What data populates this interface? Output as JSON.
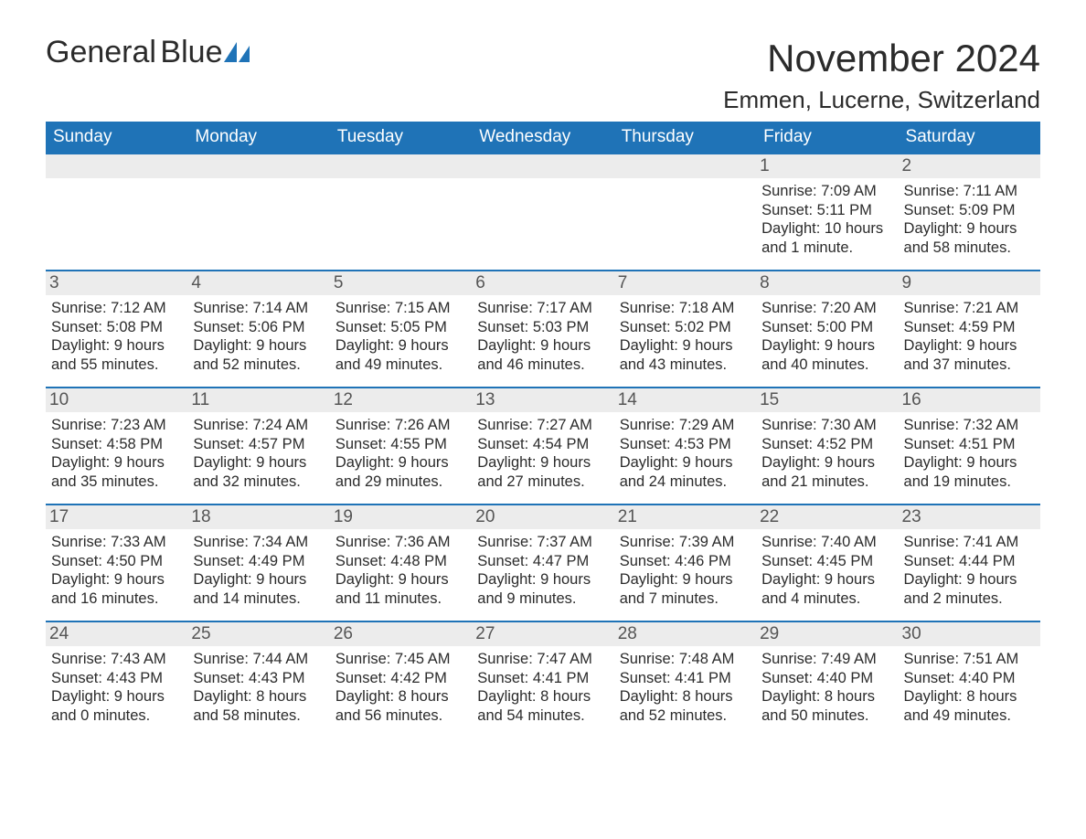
{
  "logo": {
    "word1": "General",
    "word2": "Blue",
    "sail_color": "#1f73b7",
    "text_color_dark": "#2b2b2b"
  },
  "title": "November 2024",
  "location": "Emmen, Lucerne, Switzerland",
  "colors": {
    "header_bg": "#1f73b7",
    "header_text": "#ffffff",
    "row_border": "#1f73b7",
    "daynum_bg": "#ececec",
    "daynum_text": "#555555",
    "body_text": "#2b2b2b",
    "page_bg": "#ffffff"
  },
  "weekdays": [
    "Sunday",
    "Monday",
    "Tuesday",
    "Wednesday",
    "Thursday",
    "Friday",
    "Saturday"
  ],
  "labels": {
    "sunrise": "Sunrise:",
    "sunset": "Sunset:",
    "daylight": "Daylight:"
  },
  "weeks": [
    [
      null,
      null,
      null,
      null,
      null,
      {
        "n": "1",
        "sunrise": "7:09 AM",
        "sunset": "5:11 PM",
        "daylight": "10 hours and 1 minute."
      },
      {
        "n": "2",
        "sunrise": "7:11 AM",
        "sunset": "5:09 PM",
        "daylight": "9 hours and 58 minutes."
      }
    ],
    [
      {
        "n": "3",
        "sunrise": "7:12 AM",
        "sunset": "5:08 PM",
        "daylight": "9 hours and 55 minutes."
      },
      {
        "n": "4",
        "sunrise": "7:14 AM",
        "sunset": "5:06 PM",
        "daylight": "9 hours and 52 minutes."
      },
      {
        "n": "5",
        "sunrise": "7:15 AM",
        "sunset": "5:05 PM",
        "daylight": "9 hours and 49 minutes."
      },
      {
        "n": "6",
        "sunrise": "7:17 AM",
        "sunset": "5:03 PM",
        "daylight": "9 hours and 46 minutes."
      },
      {
        "n": "7",
        "sunrise": "7:18 AM",
        "sunset": "5:02 PM",
        "daylight": "9 hours and 43 minutes."
      },
      {
        "n": "8",
        "sunrise": "7:20 AM",
        "sunset": "5:00 PM",
        "daylight": "9 hours and 40 minutes."
      },
      {
        "n": "9",
        "sunrise": "7:21 AM",
        "sunset": "4:59 PM",
        "daylight": "9 hours and 37 minutes."
      }
    ],
    [
      {
        "n": "10",
        "sunrise": "7:23 AM",
        "sunset": "4:58 PM",
        "daylight": "9 hours and 35 minutes."
      },
      {
        "n": "11",
        "sunrise": "7:24 AM",
        "sunset": "4:57 PM",
        "daylight": "9 hours and 32 minutes."
      },
      {
        "n": "12",
        "sunrise": "7:26 AM",
        "sunset": "4:55 PM",
        "daylight": "9 hours and 29 minutes."
      },
      {
        "n": "13",
        "sunrise": "7:27 AM",
        "sunset": "4:54 PM",
        "daylight": "9 hours and 27 minutes."
      },
      {
        "n": "14",
        "sunrise": "7:29 AM",
        "sunset": "4:53 PM",
        "daylight": "9 hours and 24 minutes."
      },
      {
        "n": "15",
        "sunrise": "7:30 AM",
        "sunset": "4:52 PM",
        "daylight": "9 hours and 21 minutes."
      },
      {
        "n": "16",
        "sunrise": "7:32 AM",
        "sunset": "4:51 PM",
        "daylight": "9 hours and 19 minutes."
      }
    ],
    [
      {
        "n": "17",
        "sunrise": "7:33 AM",
        "sunset": "4:50 PM",
        "daylight": "9 hours and 16 minutes."
      },
      {
        "n": "18",
        "sunrise": "7:34 AM",
        "sunset": "4:49 PM",
        "daylight": "9 hours and 14 minutes."
      },
      {
        "n": "19",
        "sunrise": "7:36 AM",
        "sunset": "4:48 PM",
        "daylight": "9 hours and 11 minutes."
      },
      {
        "n": "20",
        "sunrise": "7:37 AM",
        "sunset": "4:47 PM",
        "daylight": "9 hours and 9 minutes."
      },
      {
        "n": "21",
        "sunrise": "7:39 AM",
        "sunset": "4:46 PM",
        "daylight": "9 hours and 7 minutes."
      },
      {
        "n": "22",
        "sunrise": "7:40 AM",
        "sunset": "4:45 PM",
        "daylight": "9 hours and 4 minutes."
      },
      {
        "n": "23",
        "sunrise": "7:41 AM",
        "sunset": "4:44 PM",
        "daylight": "9 hours and 2 minutes."
      }
    ],
    [
      {
        "n": "24",
        "sunrise": "7:43 AM",
        "sunset": "4:43 PM",
        "daylight": "9 hours and 0 minutes."
      },
      {
        "n": "25",
        "sunrise": "7:44 AM",
        "sunset": "4:43 PM",
        "daylight": "8 hours and 58 minutes."
      },
      {
        "n": "26",
        "sunrise": "7:45 AM",
        "sunset": "4:42 PM",
        "daylight": "8 hours and 56 minutes."
      },
      {
        "n": "27",
        "sunrise": "7:47 AM",
        "sunset": "4:41 PM",
        "daylight": "8 hours and 54 minutes."
      },
      {
        "n": "28",
        "sunrise": "7:48 AM",
        "sunset": "4:41 PM",
        "daylight": "8 hours and 52 minutes."
      },
      {
        "n": "29",
        "sunrise": "7:49 AM",
        "sunset": "4:40 PM",
        "daylight": "8 hours and 50 minutes."
      },
      {
        "n": "30",
        "sunrise": "7:51 AM",
        "sunset": "4:40 PM",
        "daylight": "8 hours and 49 minutes."
      }
    ]
  ]
}
